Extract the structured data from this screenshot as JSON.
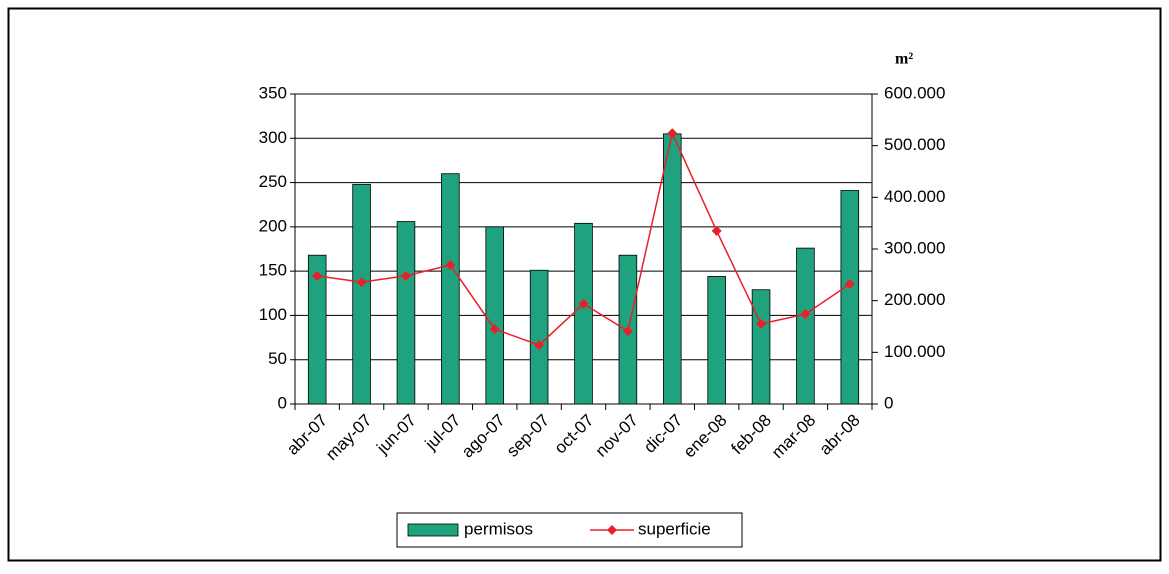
{
  "chart_data": {
    "type": "bar_line",
    "y2label": "m²",
    "categories": [
      "abr-07",
      "may-07",
      "jun-07",
      "jul-07",
      "ago-07",
      "sep-07",
      "oct-07",
      "nov-07",
      "dic-07",
      "ene-08",
      "feb-08",
      "mar-08",
      "abr-08"
    ],
    "series": [
      {
        "name": "permisos",
        "type": "bar",
        "color": "#1fa37f",
        "values": [
          168,
          248,
          206,
          260,
          200,
          151,
          204,
          168,
          305,
          144,
          129,
          176,
          241
        ]
      },
      {
        "name": "superficie",
        "type": "line",
        "axis": "y2",
        "color": "#e8202a",
        "values": [
          248000,
          236000,
          248000,
          269000,
          145000,
          114000,
          194000,
          141000,
          524000,
          335000,
          155000,
          174000,
          232000
        ]
      }
    ],
    "ylim": [
      0,
      350
    ],
    "yticks": [
      0,
      50,
      100,
      150,
      200,
      250,
      300,
      350
    ],
    "y2lim": [
      0,
      600000
    ],
    "y2ticks": [
      {
        "value": 0,
        "label": "0"
      },
      {
        "value": 100000,
        "label": "100.000"
      },
      {
        "value": 200000,
        "label": "200.000"
      },
      {
        "value": 300000,
        "label": "300.000"
      },
      {
        "value": 400000,
        "label": "400.000"
      },
      {
        "value": 500000,
        "label": "500.000"
      },
      {
        "value": 600000,
        "label": "600.000"
      }
    ],
    "grid": true
  }
}
